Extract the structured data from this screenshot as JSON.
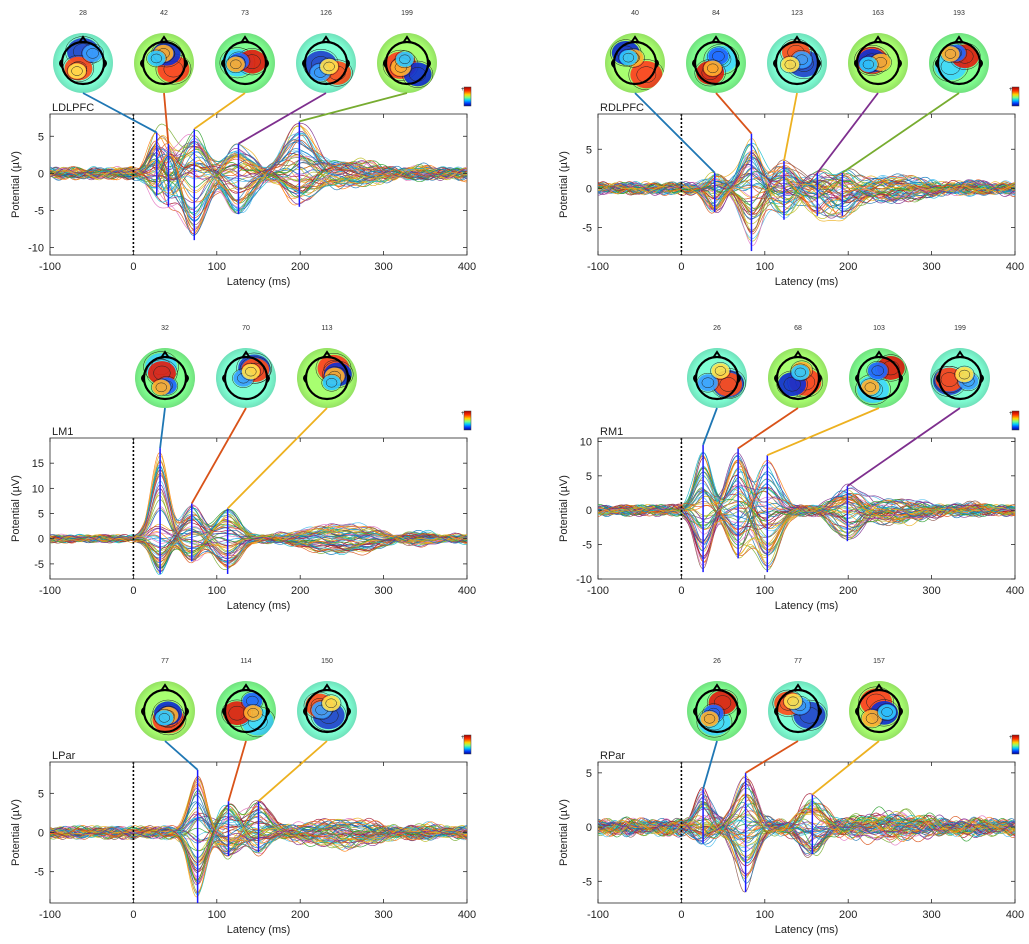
{
  "chart_data": [
    {
      "type": "line",
      "title": "LDLPFC",
      "xlabel": "Latency (ms)",
      "ylabel": "Potential (µV)",
      "xlim": [
        -100,
        400
      ],
      "ylim": [
        -11,
        8
      ],
      "xticks": [
        -100,
        0,
        100,
        200,
        300,
        400
      ],
      "yticks": [
        -10,
        -5,
        0,
        5
      ],
      "stimulus_marker": 0,
      "peaks": [
        {
          "latency": 28,
          "label": "28",
          "color": "#1f77b4",
          "range": [
            -3,
            5.5
          ]
        },
        {
          "latency": 42,
          "label": "42",
          "color": "#d95319",
          "range": [
            -4.5,
            4
          ]
        },
        {
          "latency": 73,
          "label": "73",
          "color": "#edb120",
          "range": [
            -9,
            6
          ]
        },
        {
          "latency": 126,
          "label": "126",
          "color": "#7e2f8e",
          "range": [
            -5.5,
            4
          ]
        },
        {
          "latency": 199,
          "label": "199",
          "color": "#77ac30",
          "range": [
            -4.5,
            7
          ]
        }
      ]
    },
    {
      "type": "line",
      "title": "RDLPFC",
      "xlabel": "Latency (ms)",
      "ylabel": "Potential (µV)",
      "xlim": [
        -100,
        400
      ],
      "ylim": [
        -8.5,
        9.5
      ],
      "xticks": [
        -100,
        0,
        100,
        200,
        300,
        400
      ],
      "yticks": [
        -5,
        0,
        5
      ],
      "stimulus_marker": 0,
      "peaks": [
        {
          "latency": 40,
          "label": "40",
          "color": "#1f77b4",
          "range": [
            -3,
            2
          ]
        },
        {
          "latency": 84,
          "label": "84",
          "color": "#d95319",
          "range": [
            -8,
            7
          ]
        },
        {
          "latency": 123,
          "label": "123",
          "color": "#edb120",
          "range": [
            -4,
            3.5
          ]
        },
        {
          "latency": 163,
          "label": "163",
          "color": "#7e2f8e",
          "range": [
            -3.5,
            2
          ]
        },
        {
          "latency": 193,
          "label": "193",
          "color": "#77ac30",
          "range": [
            -3.5,
            2
          ]
        }
      ]
    },
    {
      "type": "line",
      "title": "LM1",
      "xlabel": "Latency (ms)",
      "ylabel": "Potential (µV)",
      "xlim": [
        -100,
        400
      ],
      "ylim": [
        -8,
        20
      ],
      "xticks": [
        -100,
        0,
        100,
        200,
        300,
        400
      ],
      "yticks": [
        -5,
        0,
        5,
        10,
        15
      ],
      "stimulus_marker": 0,
      "peaks": [
        {
          "latency": 32,
          "label": "32",
          "color": "#1f77b4",
          "range": [
            -7,
            18
          ]
        },
        {
          "latency": 70,
          "label": "70",
          "color": "#d95319",
          "range": [
            -4.5,
            7
          ]
        },
        {
          "latency": 113,
          "label": "113",
          "color": "#edb120",
          "range": [
            -7,
            6
          ]
        }
      ]
    },
    {
      "type": "line",
      "title": "RM1",
      "xlabel": "Latency (ms)",
      "ylabel": "Potential (µV)",
      "xlim": [
        -100,
        400
      ],
      "ylim": [
        -10,
        10.5
      ],
      "xticks": [
        -100,
        0,
        100,
        200,
        300,
        400
      ],
      "yticks": [
        -10,
        -5,
        0,
        5,
        10
      ],
      "stimulus_marker": 0,
      "peaks": [
        {
          "latency": 26,
          "label": "26",
          "color": "#1f77b4",
          "range": [
            -9,
            9.5
          ]
        },
        {
          "latency": 68,
          "label": "68",
          "color": "#d95319",
          "range": [
            -7,
            9
          ]
        },
        {
          "latency": 103,
          "label": "103",
          "color": "#edb120",
          "range": [
            -9,
            8
          ]
        },
        {
          "latency": 199,
          "label": "199",
          "color": "#7e2f8e",
          "range": [
            -4.5,
            3.5
          ]
        }
      ]
    },
    {
      "type": "line",
      "title": "LPar",
      "xlabel": "Latency (ms)",
      "ylabel": "Potential (µV)",
      "xlim": [
        -100,
        400
      ],
      "ylim": [
        -9,
        9
      ],
      "xticks": [
        -100,
        0,
        100,
        200,
        300,
        400
      ],
      "yticks": [
        -5,
        0,
        5
      ],
      "stimulus_marker": 0,
      "peaks": [
        {
          "latency": 77,
          "label": "77",
          "color": "#1f77b4",
          "range": [
            -9,
            8
          ]
        },
        {
          "latency": 114,
          "label": "114",
          "color": "#d95319",
          "range": [
            -3,
            4
          ]
        },
        {
          "latency": 150,
          "label": "150",
          "color": "#edb120",
          "range": [
            -2.5,
            4
          ]
        }
      ]
    },
    {
      "type": "line",
      "title": "RPar",
      "xlabel": "Latency (ms)",
      "ylabel": "Potential (µV)",
      "xlim": [
        -100,
        400
      ],
      "ylim": [
        -7,
        6
      ],
      "xticks": [
        -100,
        0,
        100,
        200,
        300,
        400
      ],
      "yticks": [
        -5,
        0,
        5
      ],
      "stimulus_marker": 0,
      "peaks": [
        {
          "latency": 26,
          "label": "26",
          "color": "#1f77b4",
          "range": [
            -1.5,
            3.5
          ]
        },
        {
          "latency": 77,
          "label": "77",
          "color": "#d95319",
          "range": [
            -6,
            5
          ]
        },
        {
          "latency": 157,
          "label": "157",
          "color": "#edb120",
          "range": [
            -2.5,
            3
          ]
        }
      ]
    }
  ]
}
